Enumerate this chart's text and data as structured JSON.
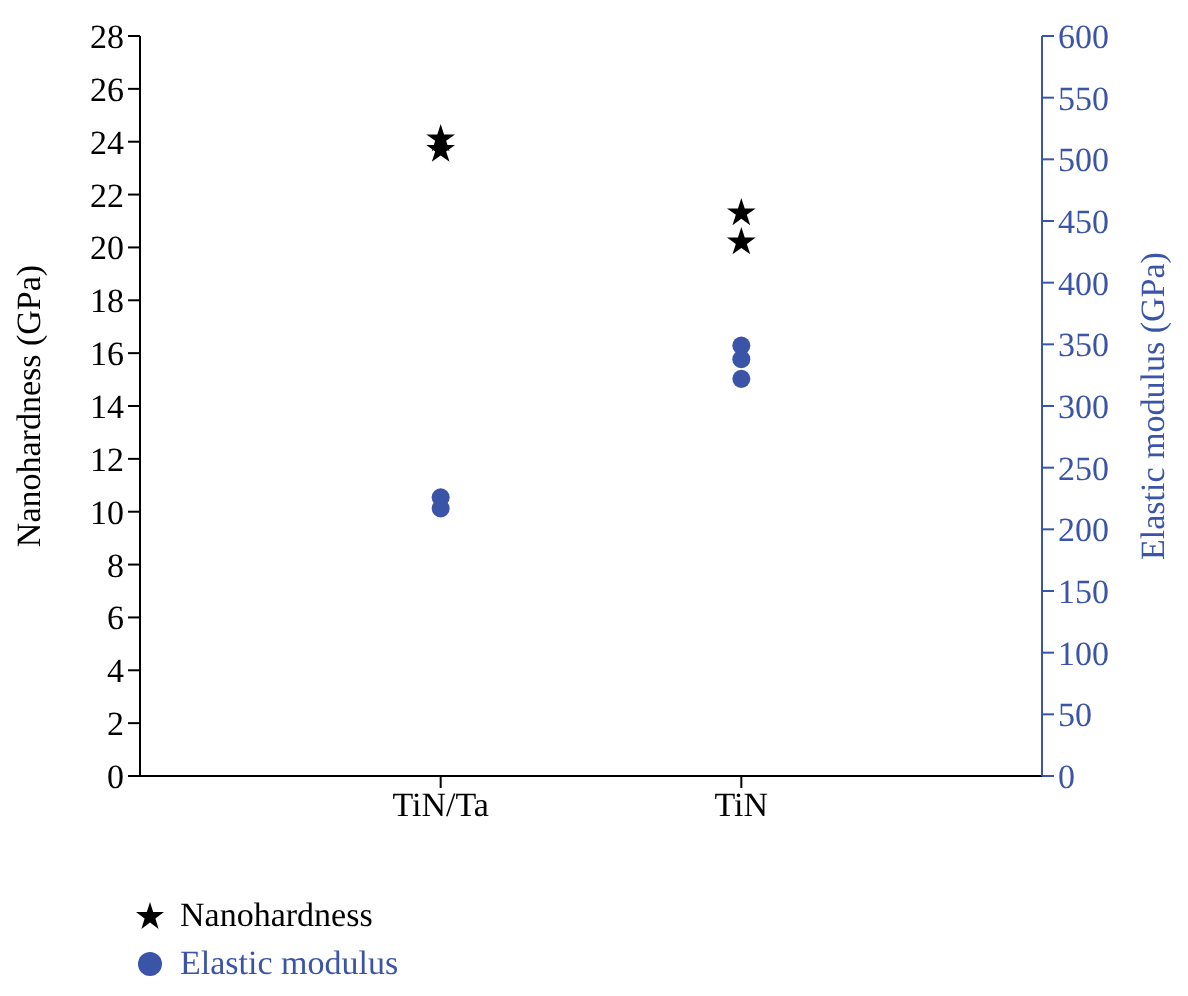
{
  "chart_data": {
    "type": "scatter",
    "categories": [
      "TiN/Ta",
      "TiN"
    ],
    "ylabel": "Nanohardness (GPa)",
    "y2label": "Elastic modulus (GPa)",
    "ylim": [
      0,
      28
    ],
    "yticks": [
      0,
      2,
      4,
      6,
      8,
      10,
      12,
      14,
      16,
      18,
      20,
      22,
      24,
      26,
      28
    ],
    "y2lim": [
      0,
      600
    ],
    "y2ticks": [
      0,
      50,
      100,
      150,
      200,
      250,
      300,
      350,
      400,
      450,
      500,
      550,
      600
    ],
    "grid": false,
    "legend": "bottom left",
    "series": [
      {
        "name": "Nanohardness",
        "color": "#000000",
        "marker": "star",
        "x": [
          "TiN/Ta",
          "TiN/Ta",
          "TiN",
          "TiN"
        ],
        "values": [
          24.1,
          23.7,
          21.3,
          20.2
        ]
      },
      {
        "name": "Elastic modulus",
        "color": "#3a55a8",
        "marker": "circle",
        "axis": "y2",
        "x": [
          "TiN/Ta",
          "TiN/Ta",
          "TiN",
          "TiN",
          "TiN"
        ],
        "values": [
          226,
          217,
          349,
          338,
          322
        ]
      }
    ]
  }
}
